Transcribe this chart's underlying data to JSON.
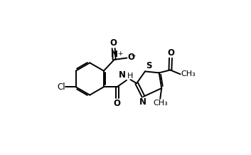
{
  "bg_color": "#ffffff",
  "line_color": "#000000",
  "lw": 1.4,
  "fs": 8.5,
  "fig_w": 3.53,
  "fig_h": 2.18,
  "xlim": [
    -0.05,
    1.1
  ],
  "ylim": [
    -0.05,
    1.05
  ]
}
